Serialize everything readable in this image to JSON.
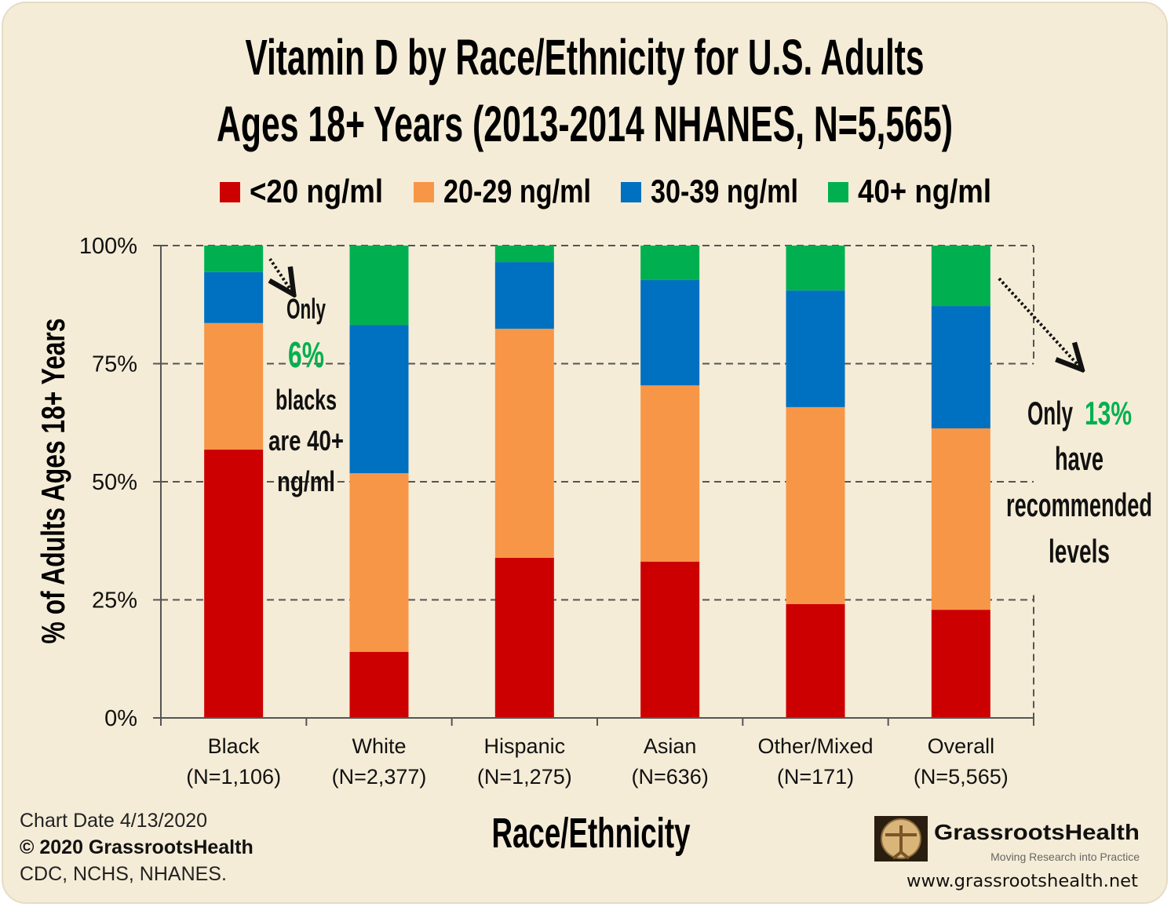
{
  "chart_data": {
    "type": "bar",
    "stacked": true,
    "title": [
      "Vitamin D by Race/Ethnicity for U.S. Adults",
      "Ages 18+ Years (2013-2014 NHANES, N=5,565)"
    ],
    "xlabel": "Race/Ethnicity",
    "ylabel": "% of Adults Ages 18+ Years",
    "ylim": [
      0,
      100
    ],
    "yticks": [
      "0%",
      "25%",
      "50%",
      "75%",
      "100%"
    ],
    "grid": "dashed horizontal",
    "legend_placement": "top",
    "categories": [
      [
        "Black",
        "(N=1,106)"
      ],
      [
        "White",
        "(N=2,377)"
      ],
      [
        "Hispanic",
        "(N=1,275)"
      ],
      [
        "Asian",
        "(N=636)"
      ],
      [
        "Other/Mixed",
        "(N=171)"
      ],
      [
        "Overall",
        "(N=5,565)"
      ]
    ],
    "series": [
      {
        "name": "<20 ng/ml",
        "color": "#cc0000",
        "values": [
          56.8,
          14.0,
          33.9,
          33.1,
          24.1,
          22.9
        ]
      },
      {
        "name": "20-29 ng/ml",
        "color": "#f79646",
        "values": [
          26.8,
          37.8,
          48.5,
          37.3,
          41.7,
          38.4
        ]
      },
      {
        "name": "30-39 ng/ml",
        "color": "#0070c0",
        "values": [
          10.8,
          31.4,
          14.1,
          22.3,
          24.7,
          25.9
        ]
      },
      {
        "name": "40+ ng/ml",
        "color": "#00b050",
        "values": [
          5.6,
          16.8,
          3.5,
          7.3,
          9.5,
          12.8
        ]
      }
    ],
    "annotations": {
      "black": [
        "Only",
        "6%",
        "blacks",
        "are 40+",
        "ng/ml"
      ],
      "overall": [
        "Only",
        "13%",
        "have",
        "recommended",
        "levels"
      ]
    }
  },
  "footer": {
    "chart_date": "Chart Date 4/13/2020",
    "copyright": "© 2020 GrassrootsHealth",
    "source": "CDC, NCHS, NHANES."
  },
  "logo": {
    "name": "GrassrootsHealth",
    "tagline": "Moving Research into Practice",
    "url": "www.grassrootshealth.net"
  },
  "colors": {
    "background": "#f5ecd7",
    "highlight": "#00b050"
  }
}
